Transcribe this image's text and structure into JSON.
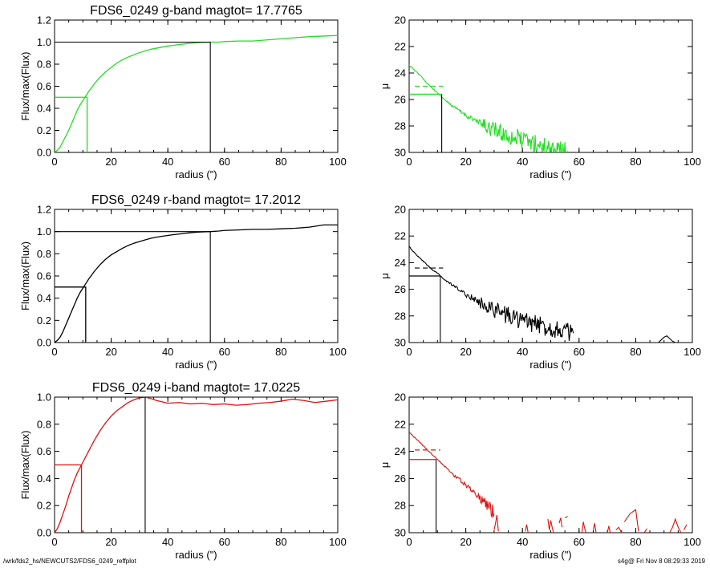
{
  "footer": {
    "left": "/wrk/fds2_hs/NEWCUTS2/FDS6_0249_reffplot",
    "right": "s4g@  Fri Nov  8 08:29:33 2019"
  },
  "colors": {
    "g": "#22dd22",
    "r": "#000000",
    "i": "#dd1111",
    "frame": "#000000"
  },
  "chart_data": [
    {
      "id": "g-flux",
      "type": "line",
      "band": "g",
      "title": "FDS6_0249 g-band  magtot=      17.7765",
      "xlabel": "radius (\")",
      "ylabel": "Flux/max(Flux)",
      "xlim": [
        0,
        100
      ],
      "ylim": [
        0,
        1.2
      ],
      "xticks": [
        "0",
        "20",
        "40",
        "60",
        "80",
        "100"
      ],
      "yticks": [
        "0.0",
        "0.2",
        "0.4",
        "0.6",
        "0.8",
        "1.0",
        "1.2"
      ],
      "x": [
        0,
        1,
        2,
        3,
        4,
        5,
        6,
        7,
        8,
        9,
        10,
        11,
        12,
        14,
        16,
        18,
        20,
        22,
        24,
        26,
        28,
        30,
        32,
        34,
        36,
        38,
        40,
        42,
        44,
        46,
        48,
        50,
        52,
        55,
        58,
        60,
        65,
        70,
        75,
        80,
        85,
        90,
        95,
        100
      ],
      "y": [
        0.0,
        0.02,
        0.05,
        0.1,
        0.15,
        0.2,
        0.26,
        0.32,
        0.38,
        0.43,
        0.47,
        0.51,
        0.55,
        0.62,
        0.68,
        0.73,
        0.77,
        0.81,
        0.84,
        0.865,
        0.885,
        0.905,
        0.92,
        0.935,
        0.945,
        0.955,
        0.965,
        0.97,
        0.978,
        0.984,
        0.99,
        0.994,
        0.997,
        1.0,
        1.0,
        1.005,
        1.01,
        1.01,
        1.02,
        1.03,
        1.04,
        1.05,
        1.055,
        1.06
      ],
      "half_light": {
        "radius": 11.5,
        "value": 0.5
      },
      "total": {
        "radius": 55,
        "value": 1.0
      }
    },
    {
      "id": "g-mu",
      "type": "line",
      "band": "g",
      "title": "",
      "xlabel": "radius (\")",
      "ylabel": "μ",
      "xlim": [
        0,
        100
      ],
      "ylim": [
        30,
        20
      ],
      "xticks": [
        "0",
        "20",
        "40",
        "60",
        "80",
        "100"
      ],
      "yticks": [
        "20",
        "22",
        "24",
        "26",
        "28",
        "30"
      ],
      "x": [
        0,
        2,
        4,
        6,
        8,
        10,
        12,
        14,
        16,
        18,
        20,
        22,
        24,
        26,
        28,
        30,
        32,
        34,
        36,
        38,
        40,
        42,
        44,
        46,
        48,
        50,
        52,
        54,
        56
      ],
      "y": [
        23.4,
        23.8,
        24.2,
        24.7,
        25.1,
        25.5,
        25.9,
        26.3,
        26.6,
        26.9,
        27.2,
        27.4,
        27.7,
        27.9,
        28.1,
        28.3,
        28.5,
        28.6,
        28.8,
        28.9,
        29.1,
        29.2,
        29.3,
        29.5,
        29.6,
        29.6,
        29.7,
        29.8,
        29.9
      ],
      "noise": 0.35,
      "half_light": {
        "radius": 11.5,
        "mu": 25.6
      },
      "dashed_mu": 25.0,
      "dashed_range": [
        2,
        12
      ]
    },
    {
      "id": "r-flux",
      "type": "line",
      "band": "r",
      "title": "FDS6_0249 r-band  magtot=      17.2012",
      "xlabel": "radius (\")",
      "ylabel": "Flux/max(Flux)",
      "xlim": [
        0,
        100
      ],
      "ylim": [
        0,
        1.2
      ],
      "xticks": [
        "0",
        "20",
        "40",
        "60",
        "80",
        "100"
      ],
      "yticks": [
        "0.0",
        "0.2",
        "0.4",
        "0.6",
        "0.8",
        "1.0",
        "1.2"
      ],
      "x": [
        0,
        1,
        2,
        3,
        4,
        5,
        6,
        7,
        8,
        9,
        10,
        11,
        12,
        14,
        16,
        18,
        20,
        22,
        24,
        26,
        28,
        30,
        32,
        34,
        36,
        38,
        40,
        42,
        44,
        46,
        48,
        50,
        52,
        55,
        58,
        60,
        65,
        70,
        75,
        80,
        85,
        90,
        95,
        100
      ],
      "y": [
        0.0,
        0.02,
        0.05,
        0.1,
        0.16,
        0.22,
        0.28,
        0.34,
        0.4,
        0.45,
        0.49,
        0.53,
        0.57,
        0.64,
        0.7,
        0.75,
        0.79,
        0.82,
        0.85,
        0.875,
        0.895,
        0.91,
        0.925,
        0.94,
        0.95,
        0.958,
        0.965,
        0.972,
        0.978,
        0.984,
        0.99,
        0.994,
        0.997,
        1.0,
        1.005,
        1.01,
        1.015,
        1.02,
        1.02,
        1.025,
        1.03,
        1.04,
        1.06,
        1.06
      ],
      "half_light": {
        "radius": 11,
        "value": 0.5
      },
      "total": {
        "radius": 55,
        "value": 1.0
      }
    },
    {
      "id": "r-mu",
      "type": "line",
      "band": "r",
      "title": "",
      "xlabel": "radius (\")",
      "ylabel": "μ",
      "xlim": [
        0,
        100
      ],
      "ylim": [
        30,
        20
      ],
      "xticks": [
        "0",
        "20",
        "40",
        "60",
        "80",
        "100"
      ],
      "yticks": [
        "20",
        "22",
        "24",
        "26",
        "28",
        "30"
      ],
      "x": [
        0,
        2,
        4,
        6,
        8,
        10,
        12,
        14,
        16,
        18,
        20,
        22,
        24,
        26,
        28,
        30,
        32,
        34,
        36,
        38,
        40,
        42,
        44,
        46,
        48,
        50,
        52,
        54,
        56,
        58
      ],
      "y": [
        22.8,
        23.3,
        23.7,
        24.1,
        24.5,
        24.8,
        25.2,
        25.5,
        25.8,
        26.1,
        26.4,
        26.6,
        26.9,
        27.1,
        27.3,
        27.5,
        27.7,
        27.9,
        28.0,
        28.2,
        28.3,
        28.5,
        28.6,
        28.7,
        28.8,
        28.9,
        29.0,
        29.1,
        29.2,
        29.3
      ],
      "noise": 0.35,
      "half_light": {
        "radius": 11,
        "mu": 25.0
      },
      "dashed_mu": 24.4,
      "dashed_range": [
        2,
        12
      ],
      "outer_bump": {
        "x": [
          88,
          89,
          90,
          91,
          92,
          93,
          94
        ],
        "y": [
          30.0,
          29.8,
          29.6,
          29.5,
          29.7,
          29.9,
          30.0
        ]
      }
    },
    {
      "id": "i-flux",
      "type": "line",
      "band": "i",
      "title": "FDS6_0249 i-band  magtot=      17.0225",
      "xlabel": "radius (\")",
      "ylabel": "Flux/max(Flux)",
      "xlim": [
        0,
        100
      ],
      "ylim": [
        0,
        1.0
      ],
      "xticks": [
        "0",
        "20",
        "40",
        "60",
        "80",
        "100"
      ],
      "yticks": [
        "0.0",
        "0.2",
        "0.4",
        "0.6",
        "0.8",
        "1.0"
      ],
      "x": [
        0,
        1,
        2,
        3,
        4,
        5,
        6,
        7,
        8,
        9,
        10,
        11,
        12,
        14,
        16,
        18,
        20,
        22,
        24,
        26,
        28,
        30,
        32,
        34,
        36,
        38,
        40,
        44,
        48,
        52,
        56,
        60,
        64,
        68,
        72,
        76,
        80,
        84,
        88,
        92,
        96,
        100
      ],
      "y": [
        0.0,
        0.03,
        0.08,
        0.14,
        0.2,
        0.27,
        0.33,
        0.39,
        0.44,
        0.48,
        0.52,
        0.56,
        0.6,
        0.68,
        0.75,
        0.81,
        0.86,
        0.9,
        0.93,
        0.96,
        0.98,
        0.995,
        1.0,
        0.99,
        0.975,
        0.965,
        0.955,
        0.96,
        0.95,
        0.955,
        0.945,
        0.95,
        0.94,
        0.945,
        0.955,
        0.96,
        0.97,
        0.985,
        0.975,
        0.96,
        0.97,
        0.98
      ],
      "half_light": {
        "radius": 9.5,
        "value": 0.5
      },
      "total": {
        "radius": 32,
        "value": 1.0
      }
    },
    {
      "id": "i-mu",
      "type": "line",
      "band": "i",
      "title": "",
      "xlabel": "radius (\")",
      "ylabel": "μ",
      "xlim": [
        0,
        100
      ],
      "ylim": [
        30,
        20
      ],
      "xticks": [
        "0",
        "20",
        "40",
        "60",
        "80",
        "100"
      ],
      "yticks": [
        "20",
        "22",
        "24",
        "26",
        "28",
        "30"
      ],
      "x": [
        0,
        2,
        4,
        6,
        8,
        10,
        12,
        14,
        16,
        18,
        20,
        22,
        24,
        26,
        28,
        30
      ],
      "y": [
        22.6,
        23.0,
        23.4,
        23.8,
        24.2,
        24.6,
        25.0,
        25.4,
        25.8,
        26.1,
        26.5,
        26.8,
        27.2,
        27.6,
        28.0,
        28.6
      ],
      "noise": 0.3,
      "half_light": {
        "radius": 9.5,
        "mu": 24.6
      },
      "dashed_mu": 23.9,
      "dashed_range": [
        2,
        11
      ],
      "fragments": [
        {
          "x": [
            30.0,
            30.5,
            31.0,
            31.5
          ],
          "y": [
            29.8,
            29.3,
            28.7,
            29.9
          ]
        },
        {
          "x": [
            41.0,
            41.5,
            42.0
          ],
          "y": [
            29.9,
            29.4,
            30.0
          ]
        },
        {
          "x": [
            49.0,
            49.5,
            50.0,
            50.5,
            51.0
          ],
          "y": [
            29.0,
            29.8,
            29.1,
            29.6,
            30.0
          ]
        },
        {
          "x": [
            53.0,
            53.5,
            54.0
          ],
          "y": [
            29.3,
            28.9,
            29.6
          ]
        },
        {
          "x": [
            55.0,
            56.0
          ],
          "y": [
            28.9,
            28.8
          ]
        },
        {
          "x": [
            61.0,
            61.5,
            62.0,
            62.5
          ],
          "y": [
            30.0,
            29.2,
            29.7,
            30.0
          ]
        },
        {
          "x": [
            65.0,
            65.5,
            66.0
          ],
          "y": [
            29.8,
            29.3,
            30.0
          ]
        },
        {
          "x": [
            70.0,
            70.5,
            71.0
          ],
          "y": [
            30.0,
            29.5,
            30.0
          ]
        },
        {
          "x": [
            73.0,
            74.0,
            75.0
          ],
          "y": [
            29.8,
            29.6,
            30.0
          ]
        },
        {
          "x": [
            76.0,
            78.0,
            80.0,
            81.0
          ],
          "y": [
            29.2,
            28.6,
            28.3,
            29.9
          ]
        },
        {
          "x": [
            83.0,
            84.0
          ],
          "y": [
            30.0,
            29.7
          ]
        },
        {
          "x": [
            92.0,
            93.0,
            94.0,
            95.0,
            96.0
          ],
          "y": [
            30.0,
            29.6,
            29.0,
            29.6,
            30.0
          ]
        },
        {
          "x": [
            97.0,
            98.0
          ],
          "y": [
            29.8,
            29.4
          ]
        }
      ]
    }
  ]
}
